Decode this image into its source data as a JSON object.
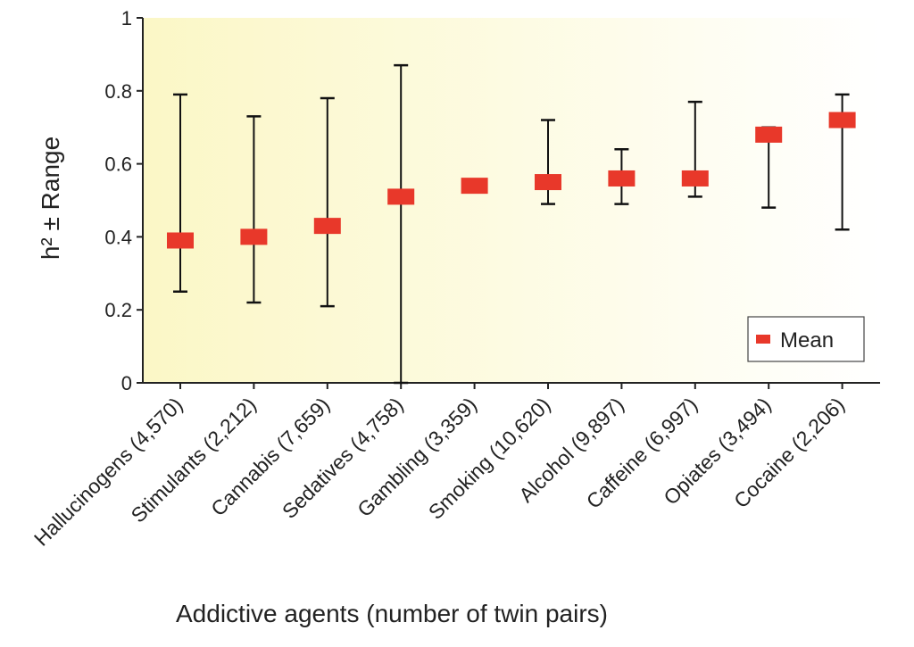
{
  "chart_data": {
    "type": "scatter",
    "xlabel": "Addictive agents (number of twin pairs)",
    "ylabel": "h² ± Range",
    "ylim": [
      0,
      1
    ],
    "yticks": [
      "0",
      "0.2",
      "0.4",
      "0.6",
      "0.8",
      "1"
    ],
    "categories": [
      "Hallucinogens (4,570)",
      "Stimulants (2,212)",
      "Cannabis (7,659)",
      "Sedatives (4,758)",
      "Gambling (3,359)",
      "Smoking (10,620)",
      "Alcohol (9,897)",
      "Caffeine (6,997)",
      "Opiates (3,494)",
      "Cocaine (2,206)"
    ],
    "series": [
      {
        "name": "Mean",
        "color": "#e8382a",
        "values": [
          0.39,
          0.4,
          0.43,
          0.51,
          0.54,
          0.55,
          0.56,
          0.56,
          0.68,
          0.72
        ],
        "range_low": [
          0.25,
          0.22,
          0.21,
          0.0,
          null,
          0.49,
          0.49,
          0.51,
          0.48,
          0.42
        ],
        "range_high": [
          0.79,
          0.73,
          0.78,
          0.87,
          null,
          0.72,
          0.64,
          0.77,
          0.7,
          0.79
        ]
      }
    ],
    "legend": {
      "label": "Mean",
      "position": "bottom-right"
    },
    "background": {
      "gradient_from": "#fbf7c6",
      "gradient_to": "#ffffff"
    },
    "grid": false
  }
}
